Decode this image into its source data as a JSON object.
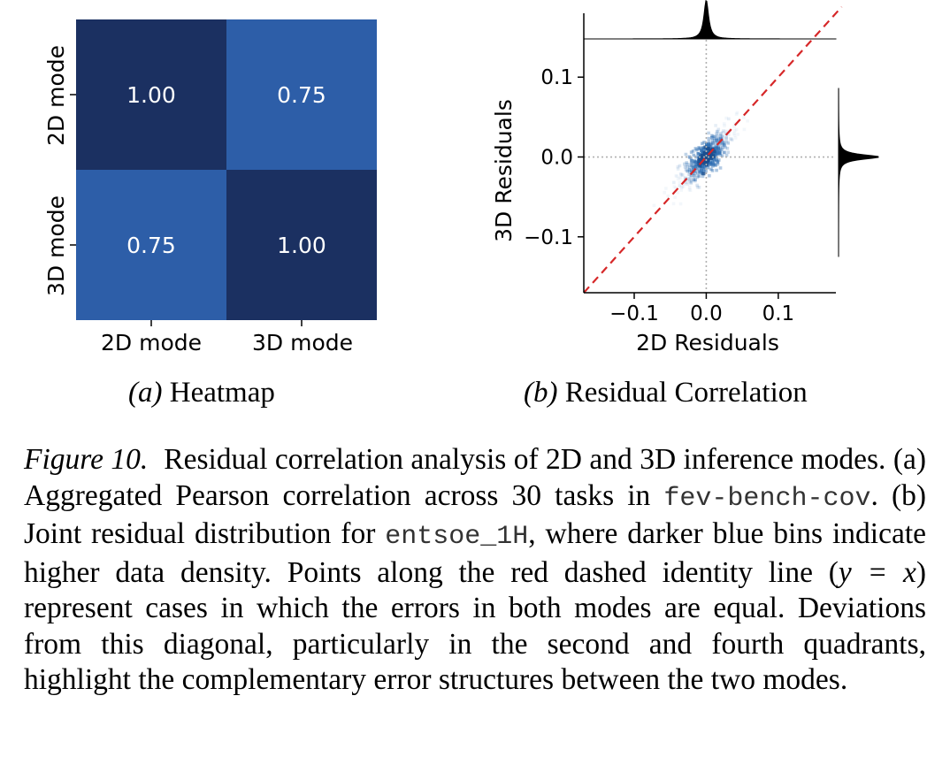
{
  "chart_data": [
    {
      "type": "heatmap",
      "title": "Heatmap",
      "panel_label": "(a)",
      "x_categories": [
        "2D mode",
        "3D mode"
      ],
      "y_categories": [
        "2D mode",
        "3D mode"
      ],
      "values": [
        [
          1.0,
          0.75
        ],
        [
          0.75,
          1.0
        ]
      ],
      "value_labels": [
        [
          "1.00",
          "0.75"
        ],
        [
          "0.75",
          "1.00"
        ]
      ],
      "colors": {
        "high": "#1b3061",
        "low": "#2d5ea8",
        "text": "#ffffff"
      }
    },
    {
      "type": "scatter",
      "title": "Residual Correlation",
      "panel_label": "(b)",
      "xlabel": "2D Residuals",
      "ylabel": "3D Residuals",
      "xlim": [
        -0.17,
        0.18
      ],
      "ylim": [
        -0.17,
        0.18
      ],
      "xticks": [
        -0.1,
        0.0,
        0.1
      ],
      "xtick_labels": [
        "−0.1",
        "0.0",
        "0.1"
      ],
      "yticks": [
        0.1,
        0.0,
        -0.1
      ],
      "ytick_labels": [
        "0.1",
        "0.0",
        "−0.1"
      ],
      "density_center": [
        0.0,
        0.0
      ],
      "density_spread": 0.03,
      "identity_line": {
        "equation": "y = x",
        "color": "#d62728",
        "style": "dashed"
      },
      "reference_lines": {
        "x": 0.0,
        "y": 0.0,
        "style": "dotted",
        "color": "#b0b0b0"
      },
      "marginals": {
        "top": "2D residual distribution",
        "right": "3D residual distribution"
      },
      "colors": {
        "bins": "#2f6fb3"
      }
    }
  ],
  "sub_captions": {
    "a": {
      "label": "(a)",
      "title": "Heatmap"
    },
    "b": {
      "label": "(b)",
      "title": "Residual Correlation"
    }
  },
  "caption": {
    "label": "Figure 10.",
    "text_1": "Residual correlation analysis of 2D and 3D inference modes. (a) Aggregated Pearson correlation across 30 tasks in",
    "code_1": "fev-bench-cov",
    "text_2": ". (b) Joint residual distribution for",
    "code_2": "entsoe_1H",
    "text_3": ", where darker blue bins indicate higher data density. Points along the red dashed identity line (",
    "math": "y = x",
    "text_4": ") represent cases in which the errors in both modes are equal. Deviations from this diagonal, particularly in the second and fourth quadrants, highlight the complementary error structures between the two modes."
  }
}
